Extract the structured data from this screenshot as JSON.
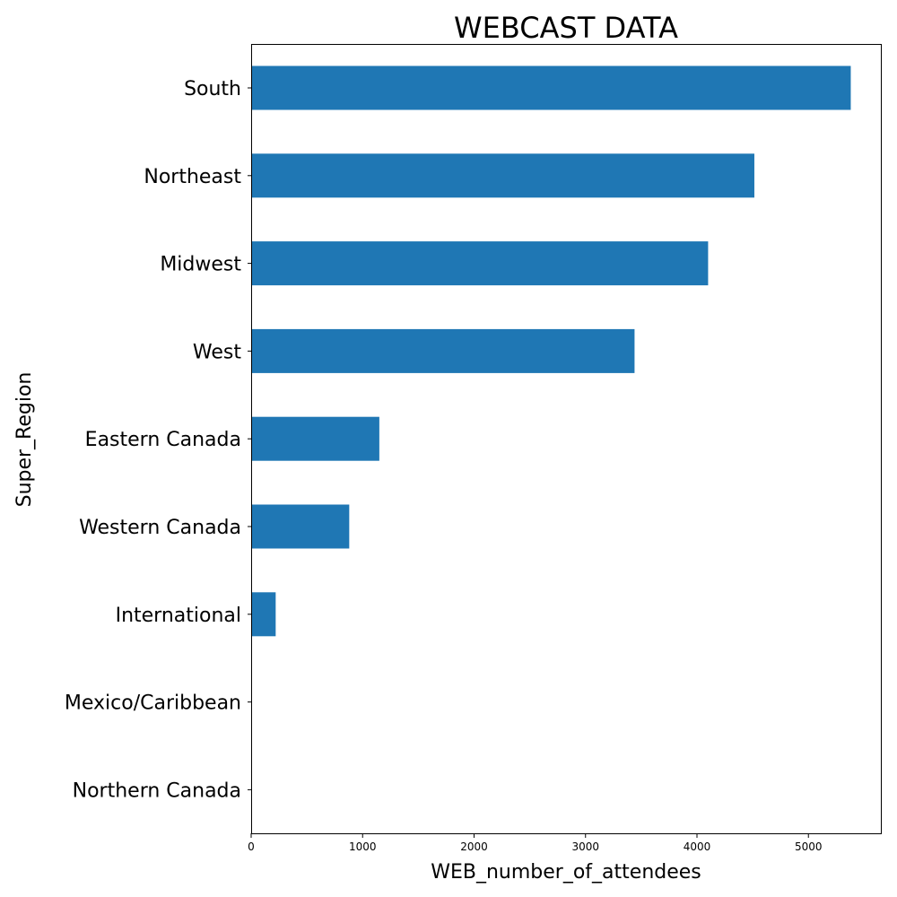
{
  "chart_data": {
    "type": "bar",
    "orientation": "horizontal",
    "title": "WEBCAST DATA",
    "xlabel": "WEB_number_of_attendees",
    "ylabel": "Super_Region",
    "categories": [
      "South",
      "Northeast",
      "Midwest",
      "West",
      "Eastern Canada",
      "Western Canada",
      "International",
      "Mexico/Caribbean",
      "Northern Canada"
    ],
    "values": [
      5380,
      4515,
      4100,
      3440,
      1150,
      880,
      220,
      0,
      0
    ],
    "xlim": [
      0,
      5650
    ],
    "xticks": [
      0,
      1000,
      2000,
      3000,
      4000,
      5000
    ],
    "grid": false,
    "bar_color": "#1f77b4"
  }
}
